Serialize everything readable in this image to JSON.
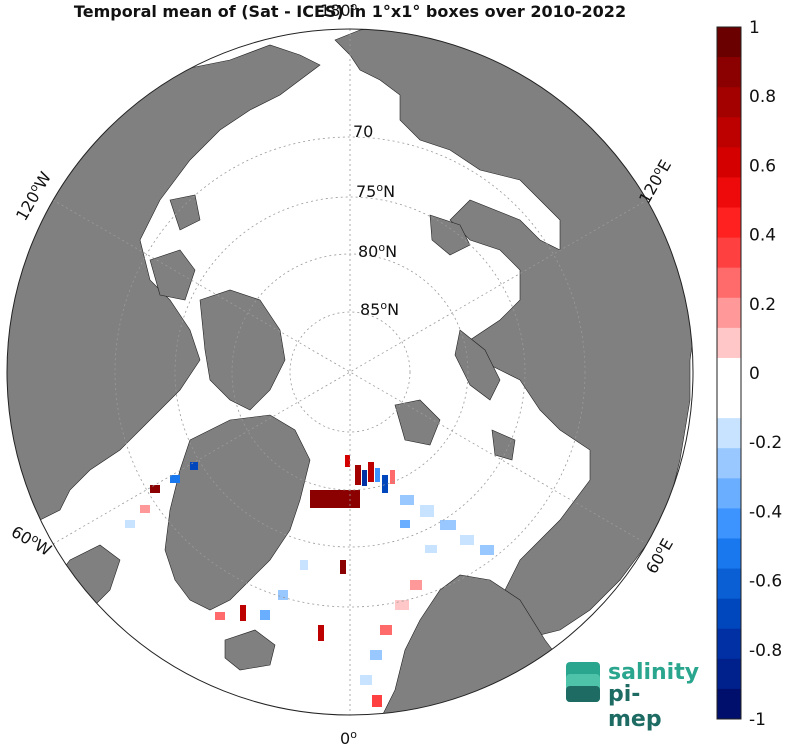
{
  "title": "Temporal mean of (Sat - ICES) in 1°x1° boxes over 2010-2022",
  "map": {
    "projection": "north polar stereographic",
    "colors": {
      "land": "#808080",
      "ocean": "#ffffff",
      "graticule": "#9a9a9a"
    },
    "lat_labels": [
      "70",
      "75",
      "80",
      "85"
    ],
    "lat_unit": "N",
    "degree_sign": "o",
    "lon_labels": {
      "top": "180",
      "bottom": "0",
      "left_low": "60",
      "left_high": "120",
      "right_low": "60",
      "right_high": "120"
    },
    "lon_units": {
      "west": "W",
      "east": "E"
    }
  },
  "colorbar": {
    "min": -1,
    "max": 1,
    "ticks": [
      "1",
      "0.8",
      "0.6",
      "0.4",
      "0.2",
      "0",
      "-0.2",
      "-0.4",
      "-0.6",
      "-0.8",
      "-1"
    ],
    "colors_top_to_bottom": [
      "#6b0000",
      "#8b0000",
      "#a30000",
      "#bd0000",
      "#d40000",
      "#ee0a0a",
      "#ff2020",
      "#ff4040",
      "#ff6a6a",
      "#ff9898",
      "#ffc7c7",
      "#ffffff",
      "#ffffff",
      "#c7e3ff",
      "#98c8ff",
      "#6aafff",
      "#3d94ff",
      "#1a78ee",
      "#0a5fd4",
      "#0047bd",
      "#0030a3",
      "#00208b",
      "#000f6b"
    ]
  },
  "logo": {
    "line1": "salinity",
    "line2": "pi-mep"
  }
}
